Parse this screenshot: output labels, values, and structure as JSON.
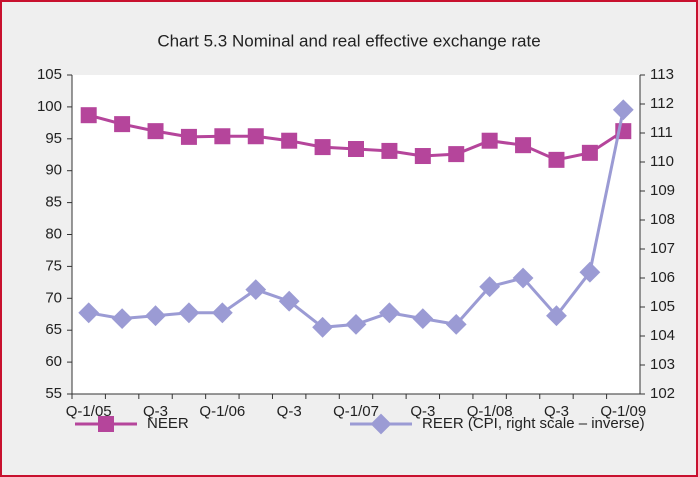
{
  "chart_data": {
    "type": "line",
    "title": "Chart 5.3  Nominal and real effective exchange rate",
    "categories": [
      "Q-1/05",
      null,
      "Q-3",
      null,
      "Q-1/06",
      null,
      "Q-3",
      null,
      "Q-1/07",
      null,
      "Q-3",
      null,
      "Q-1/08",
      null,
      "Q-3",
      null,
      "Q-1/09"
    ],
    "series": [
      {
        "name": "NEER",
        "color": "#b5459b",
        "marker": "square",
        "values": [
          98.7,
          97.3,
          96.2,
          95.3,
          95.4,
          95.4,
          94.7,
          93.7,
          93.4,
          93.1,
          92.3,
          92.6,
          94.7,
          94.0,
          91.7,
          92.8,
          96.2
        ]
      },
      {
        "name": "REER (CPI, right scale – inverse)",
        "color": "#9b9bd4",
        "marker": "diamond",
        "axis": "y2",
        "values": [
          104.8,
          104.6,
          104.7,
          104.8,
          104.8,
          105.6,
          105.2,
          104.3,
          104.4,
          104.8,
          104.6,
          104.4,
          105.7,
          106.0,
          104.7,
          106.2,
          111.8
        ]
      }
    ],
    "ylim": [
      55,
      105
    ],
    "yticks": [
      55,
      60,
      65,
      70,
      75,
      80,
      85,
      90,
      95,
      100,
      105
    ],
    "y2lim": [
      102,
      113
    ],
    "y2ticks": [
      102,
      103,
      104,
      105,
      106,
      107,
      108,
      109,
      110,
      111,
      112,
      113
    ],
    "grid": false
  }
}
